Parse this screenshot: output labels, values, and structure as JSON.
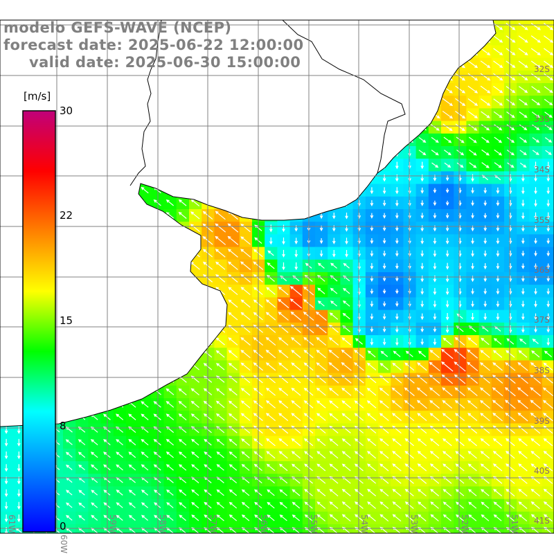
{
  "title": {
    "model": "modelo GEFS-WAVE (NCEP)",
    "forecast": "forecast date: 2025-06-22 12:00:00",
    "valid": "valid date: 2025-06-30 15:00:00"
  },
  "colorbar": {
    "unit": "[m/s]",
    "ticks": [
      "30",
      "22",
      "15",
      "8",
      "0"
    ],
    "tick_values": [
      30,
      22,
      15,
      8,
      0
    ],
    "range": [
      0,
      30
    ],
    "colors": [
      "#0000ff",
      "#0080ff",
      "#00ffff",
      "#00ff00",
      "#ffff00",
      "#ff8000",
      "#ff0000",
      "#c0007a"
    ]
  },
  "axes": {
    "lat_labels": [
      "32S",
      "33S",
      "34S",
      "35S",
      "36S",
      "37S",
      "38S",
      "39S",
      "40S",
      "41S"
    ],
    "lon_labels": [
      "61W",
      "60W",
      "59W",
      "58W",
      "57W",
      "56W",
      "55W",
      "54W",
      "53W",
      "52W",
      "51W"
    ]
  },
  "colors": {
    "land": "#ffffff",
    "grid": "#808080",
    "coast": "#000000",
    "text": "#808080",
    "arrow": "#ffffff"
  }
}
